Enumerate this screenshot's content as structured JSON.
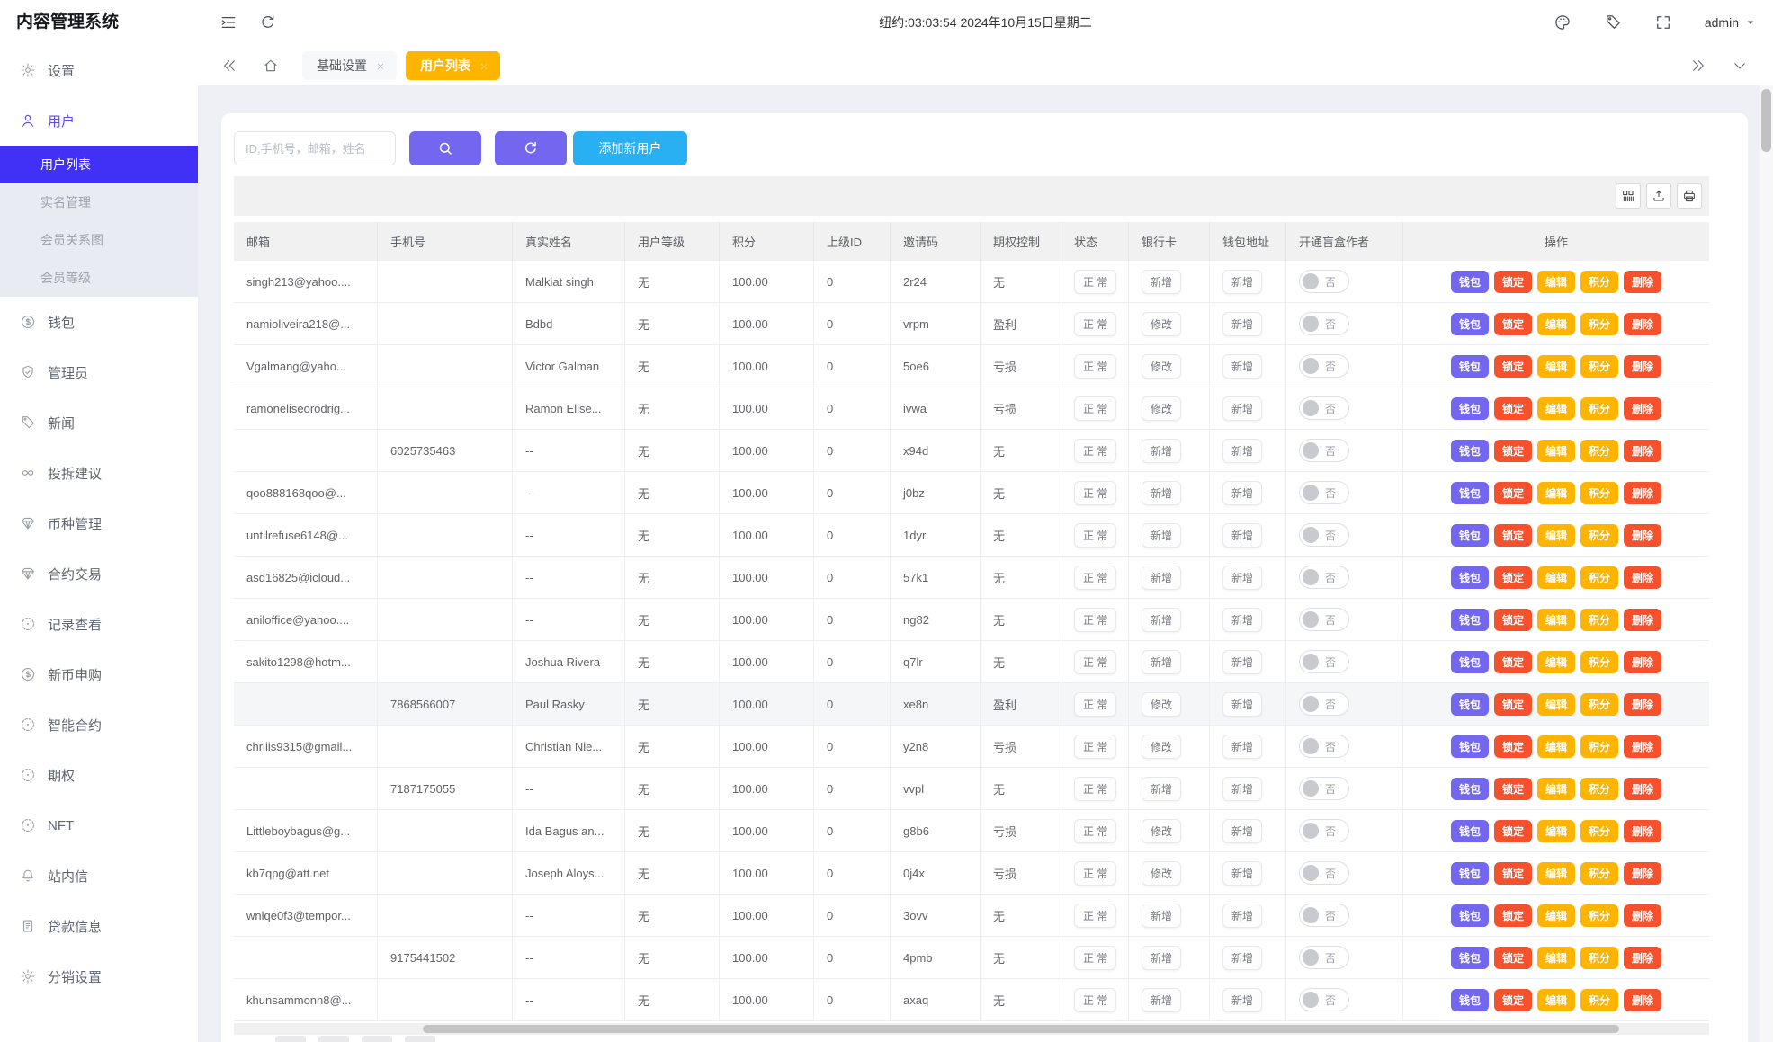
{
  "app": {
    "title": "内容管理系统"
  },
  "topbar": {
    "clock": "纽约:03:03:54 2024年10月15日星期二",
    "user": "admin",
    "icons": [
      "collapse-menu",
      "refresh",
      "palette",
      "tag",
      "fullscreen"
    ]
  },
  "tabs": [
    {
      "label": "基础设置",
      "active": false
    },
    {
      "label": "用户列表",
      "active": true
    }
  ],
  "sidebar": {
    "items": [
      {
        "icon": "gear",
        "label": "设置"
      },
      {
        "icon": "user",
        "label": "用户",
        "active": true,
        "children": [
          {
            "label": "用户列表",
            "active": true
          },
          {
            "label": "实名管理"
          },
          {
            "label": "会员关系图"
          },
          {
            "label": "会员等级"
          }
        ]
      },
      {
        "icon": "dollar",
        "label": "钱包"
      },
      {
        "icon": "shield",
        "label": "管理员"
      },
      {
        "icon": "tag",
        "label": "新闻"
      },
      {
        "icon": "infinity",
        "label": "投拆建议"
      },
      {
        "icon": "diamond",
        "label": "币种管理"
      },
      {
        "icon": "diamond",
        "label": "合约交易"
      },
      {
        "icon": "circle-dashed",
        "label": "记录查看"
      },
      {
        "icon": "dollar",
        "label": "新币申购"
      },
      {
        "icon": "circle-dashed",
        "label": "智能合约"
      },
      {
        "icon": "circle-dashed",
        "label": "期权"
      },
      {
        "icon": "circle-dashed",
        "label": "NFT"
      },
      {
        "icon": "bell",
        "label": "站内信"
      },
      {
        "icon": "clipboard",
        "label": "贷款信息"
      },
      {
        "icon": "gear",
        "label": "分销设置"
      }
    ]
  },
  "toolbar": {
    "search_placeholder": "ID,手机号，邮箱，姓名",
    "add_button": "添加新用户",
    "grid_icons": [
      "columns",
      "export",
      "print"
    ]
  },
  "table": {
    "columns": [
      "邮箱",
      "手机号",
      "真实姓名",
      "用户等级",
      "积分",
      "上级ID",
      "邀请码",
      "期权控制",
      "状态",
      "银行卡",
      "钱包地址",
      "开通盲盒作者",
      "操作"
    ],
    "actions": [
      "钱包",
      "锁定",
      "编辑",
      "积分",
      "删除"
    ],
    "action_colors": [
      "purple",
      "red",
      "amber",
      "amber",
      "red"
    ],
    "rows": [
      {
        "email": "singh213@yahoo....",
        "phone": "",
        "name": "Malkiat singh",
        "level": "无",
        "points": "100.00",
        "parent": "0",
        "code": "2r24",
        "option": "无",
        "status": "正 常",
        "bank": "新增",
        "wallet": "新增",
        "blindbox": "否",
        "highlighted": false
      },
      {
        "email": "namioliveira218@...",
        "phone": "",
        "name": "Bdbd",
        "level": "无",
        "points": "100.00",
        "parent": "0",
        "code": "vrpm",
        "option": "盈利",
        "status": "正 常",
        "bank": "修改",
        "wallet": "新增",
        "blindbox": "否",
        "highlighted": false
      },
      {
        "email": "Vgalmang@yaho...",
        "phone": "",
        "name": "Victor Galman",
        "level": "无",
        "points": "100.00",
        "parent": "0",
        "code": "5oe6",
        "option": "亏损",
        "status": "正 常",
        "bank": "修改",
        "wallet": "新增",
        "blindbox": "否",
        "highlighted": false
      },
      {
        "email": "ramoneliseorodrig...",
        "phone": "",
        "name": "Ramon Elise...",
        "level": "无",
        "points": "100.00",
        "parent": "0",
        "code": "ivwa",
        "option": "亏损",
        "status": "正 常",
        "bank": "修改",
        "wallet": "新增",
        "blindbox": "否",
        "highlighted": false
      },
      {
        "email": "",
        "phone": "6025735463",
        "name": "--",
        "level": "无",
        "points": "100.00",
        "parent": "0",
        "code": "x94d",
        "option": "无",
        "status": "正 常",
        "bank": "新增",
        "wallet": "新增",
        "blindbox": "否",
        "highlighted": false
      },
      {
        "email": "qoo888168qoo@...",
        "phone": "",
        "name": "--",
        "level": "无",
        "points": "100.00",
        "parent": "0",
        "code": "j0bz",
        "option": "无",
        "status": "正 常",
        "bank": "新增",
        "wallet": "新增",
        "blindbox": "否",
        "highlighted": false
      },
      {
        "email": "untilrefuse6148@...",
        "phone": "",
        "name": "--",
        "level": "无",
        "points": "100.00",
        "parent": "0",
        "code": "1dyr",
        "option": "无",
        "status": "正 常",
        "bank": "新增",
        "wallet": "新增",
        "blindbox": "否",
        "highlighted": false
      },
      {
        "email": "asd16825@icloud...",
        "phone": "",
        "name": "--",
        "level": "无",
        "points": "100.00",
        "parent": "0",
        "code": "57k1",
        "option": "无",
        "status": "正 常",
        "bank": "新增",
        "wallet": "新增",
        "blindbox": "否",
        "highlighted": false
      },
      {
        "email": "aniloffice@yahoo....",
        "phone": "",
        "name": "--",
        "level": "无",
        "points": "100.00",
        "parent": "0",
        "code": "ng82",
        "option": "无",
        "status": "正 常",
        "bank": "新增",
        "wallet": "新增",
        "blindbox": "否",
        "highlighted": false
      },
      {
        "email": "sakito1298@hotm...",
        "phone": "",
        "name": "Joshua Rivera",
        "level": "无",
        "points": "100.00",
        "parent": "0",
        "code": "q7lr",
        "option": "无",
        "status": "正 常",
        "bank": "新增",
        "wallet": "新增",
        "blindbox": "否",
        "highlighted": false
      },
      {
        "email": "",
        "phone": "7868566007",
        "name": "Paul Rasky",
        "level": "无",
        "points": "100.00",
        "parent": "0",
        "code": "xe8n",
        "option": "盈利",
        "status": "正 常",
        "bank": "修改",
        "wallet": "新增",
        "blindbox": "否",
        "highlighted": true
      },
      {
        "email": "chriiis9315@gmail...",
        "phone": "",
        "name": "Christian Nie...",
        "level": "无",
        "points": "100.00",
        "parent": "0",
        "code": "y2n8",
        "option": "亏损",
        "status": "正 常",
        "bank": "修改",
        "wallet": "新增",
        "blindbox": "否",
        "highlighted": false
      },
      {
        "email": "",
        "phone": "7187175055",
        "name": "--",
        "level": "无",
        "points": "100.00",
        "parent": "0",
        "code": "vvpl",
        "option": "无",
        "status": "正 常",
        "bank": "新增",
        "wallet": "新增",
        "blindbox": "否",
        "highlighted": false
      },
      {
        "email": "Littleboybagus@g...",
        "phone": "",
        "name": "Ida Bagus an...",
        "level": "无",
        "points": "100.00",
        "parent": "0",
        "code": "g8b6",
        "option": "亏损",
        "status": "正 常",
        "bank": "修改",
        "wallet": "新增",
        "blindbox": "否",
        "highlighted": false
      },
      {
        "email": "kb7qpg@att.net",
        "phone": "",
        "name": "Joseph Aloys...",
        "level": "无",
        "points": "100.00",
        "parent": "0",
        "code": "0j4x",
        "option": "亏损",
        "status": "正 常",
        "bank": "修改",
        "wallet": "新增",
        "blindbox": "否",
        "highlighted": false
      },
      {
        "email": "wnlqe0f3@tempor...",
        "phone": "",
        "name": "--",
        "level": "无",
        "points": "100.00",
        "parent": "0",
        "code": "3ovv",
        "option": "无",
        "status": "正 常",
        "bank": "新增",
        "wallet": "新增",
        "blindbox": "否",
        "highlighted": false
      },
      {
        "email": "",
        "phone": "9175441502",
        "name": "--",
        "level": "无",
        "points": "100.00",
        "parent": "0",
        "code": "4pmb",
        "option": "无",
        "status": "正 常",
        "bank": "新增",
        "wallet": "新增",
        "blindbox": "否",
        "highlighted": false
      },
      {
        "email": "khunsammonn8@...",
        "phone": "",
        "name": "--",
        "level": "无",
        "points": "100.00",
        "parent": "0",
        "code": "axaq",
        "option": "无",
        "status": "正 常",
        "bank": "新增",
        "wallet": "新增",
        "blindbox": "否",
        "highlighted": false
      }
    ]
  },
  "colors": {
    "sidebar_active": "#4130f5",
    "tab_active": "#ffb400",
    "primary_purple": "#7367f0",
    "add_blue": "#29b0f2",
    "danger_red": "#f4512c",
    "amber": "#ffb400"
  }
}
